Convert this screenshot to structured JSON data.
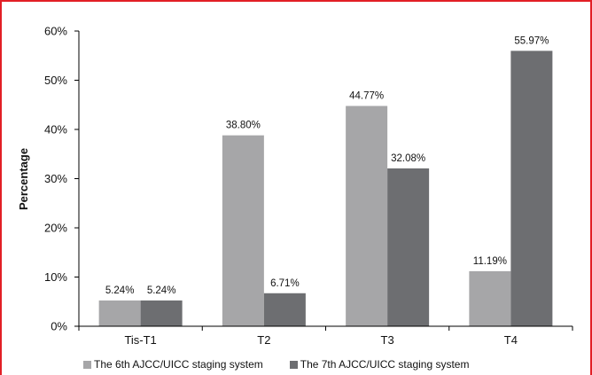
{
  "colors": {
    "frame": "#e21f26",
    "series1": "#a6a6a8",
    "series2": "#6d6e71",
    "axis": "#000000"
  },
  "chart_data": {
    "type": "bar",
    "categories": [
      "Tis-T1",
      "T2",
      "T3",
      "T4"
    ],
    "series": [
      {
        "name": "The 6th AJCC/UICC staging system",
        "values": [
          5.24,
          38.8,
          44.77,
          11.19
        ],
        "labels": [
          "5.24%",
          "38.80%",
          "44.77%",
          "11.19%"
        ]
      },
      {
        "name": "The 7th AJCC/UICC staging system",
        "values": [
          5.24,
          6.71,
          32.08,
          55.97
        ],
        "labels": [
          "5.24%",
          "6.71%",
          "32.08%",
          "55.97%"
        ]
      }
    ],
    "ylabel": "Percentage",
    "xlabel": "",
    "ylim": [
      0,
      60
    ],
    "yticks": [
      0,
      10,
      20,
      30,
      40,
      50,
      60
    ],
    "ytick_labels": [
      "0%",
      "10%",
      "20%",
      "30%",
      "40%",
      "50%",
      "60%"
    ],
    "legend_position": "bottom",
    "grid": false
  }
}
